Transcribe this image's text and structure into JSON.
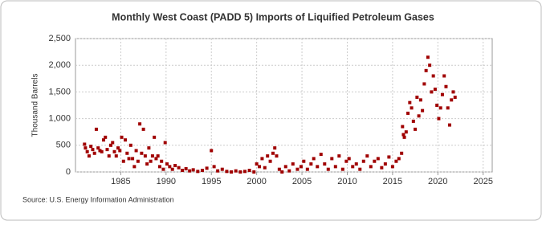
{
  "chart_data": {
    "type": "scatter",
    "title": "Monthly West Coast (PADD 5) Imports of Liquified Petroleum Gases",
    "y_label": "Thousand Barrels",
    "source": "Source: U.S. Energy Information Administration",
    "x": [
      1981.0,
      1981.1,
      1981.3,
      1981.5,
      1981.7,
      1981.9,
      1982.1,
      1982.3,
      1982.5,
      1982.7,
      1982.9,
      1983.1,
      1983.3,
      1983.5,
      1983.7,
      1983.9,
      1984.1,
      1984.3,
      1984.5,
      1984.7,
      1984.9,
      1985.1,
      1985.3,
      1985.5,
      1985.7,
      1985.9,
      1986.1,
      1986.3,
      1986.5,
      1986.7,
      1986.9,
      1987.1,
      1987.3,
      1987.5,
      1987.7,
      1987.9,
      1988.1,
      1988.3,
      1988.5,
      1988.7,
      1988.9,
      1989.1,
      1989.3,
      1989.5,
      1989.7,
      1989.9,
      1990.1,
      1990.4,
      1990.7,
      1991.0,
      1991.4,
      1991.8,
      1992.2,
      1992.6,
      1993.0,
      1993.5,
      1994.0,
      1994.5,
      1995.0,
      1995.3,
      1995.7,
      1996.2,
      1996.7,
      1997.2,
      1997.7,
      1998.2,
      1998.7,
      1999.2,
      1999.7,
      2000.0,
      2000.3,
      2000.6,
      2000.9,
      2001.2,
      2001.5,
      2001.8,
      2002.0,
      2002.2,
      2002.5,
      2002.8,
      2003.2,
      2003.6,
      2004.0,
      2004.5,
      2004.9,
      2005.2,
      2005.6,
      2006.0,
      2006.3,
      2006.7,
      2007.1,
      2007.5,
      2007.9,
      2008.3,
      2008.7,
      2009.1,
      2009.5,
      2009.9,
      2010.2,
      2010.6,
      2011.0,
      2011.4,
      2011.8,
      2012.2,
      2012.6,
      2013.0,
      2013.4,
      2013.8,
      2014.2,
      2014.6,
      2015.0,
      2015.4,
      2015.7,
      2016.0,
      2016.1,
      2016.2,
      2016.3,
      2016.5,
      2016.7,
      2016.9,
      2017.1,
      2017.3,
      2017.5,
      2017.7,
      2017.9,
      2018.1,
      2018.3,
      2018.5,
      2018.7,
      2018.9,
      2019.1,
      2019.3,
      2019.5,
      2019.7,
      2019.9,
      2020.1,
      2020.3,
      2020.5,
      2020.7,
      2020.9,
      2021.1,
      2021.3,
      2021.5,
      2021.7,
      2021.9
    ],
    "series": [
      {
        "name": "Imports",
        "color": "#a00000",
        "values": [
          520,
          450,
          380,
          300,
          480,
          420,
          350,
          800,
          450,
          400,
          380,
          600,
          650,
          420,
          300,
          500,
          550,
          380,
          300,
          450,
          400,
          650,
          200,
          600,
          350,
          250,
          500,
          250,
          100,
          400,
          200,
          900,
          350,
          800,
          300,
          150,
          450,
          200,
          300,
          650,
          250,
          300,
          100,
          200,
          50,
          550,
          150,
          100,
          50,
          120,
          80,
          30,
          60,
          20,
          40,
          10,
          30,
          70,
          400,
          100,
          20,
          50,
          10,
          0,
          20,
          0,
          10,
          30,
          0,
          150,
          100,
          250,
          80,
          300,
          200,
          350,
          450,
          300,
          50,
          0,
          100,
          20,
          150,
          50,
          100,
          200,
          50,
          150,
          250,
          100,
          330,
          150,
          50,
          250,
          100,
          300,
          50,
          200,
          250,
          100,
          150,
          50,
          200,
          300,
          100,
          200,
          250,
          80,
          150,
          280,
          100,
          200,
          250,
          350,
          850,
          700,
          650,
          750,
          1100,
          1300,
          1200,
          950,
          800,
          1400,
          1050,
          1350,
          1150,
          1650,
          1900,
          2150,
          2000,
          1500,
          1800,
          1550,
          1250,
          1000,
          1200,
          1450,
          1800,
          1600,
          1200,
          880,
          1350,
          1500,
          1400
        ]
      }
    ],
    "xlim": [
      1980,
      2026
    ],
    "xticks": [
      1985,
      1990,
      1995,
      2000,
      2005,
      2010,
      2015,
      2020,
      2025
    ],
    "ylim": [
      0,
      2500
    ],
    "yticks": [
      0,
      500,
      {
        "value": 1000,
        "label": "1,000"
      },
      {
        "value": 1500,
        "label": "1,500"
      },
      {
        "value": 2000,
        "label": "2,000"
      },
      {
        "value": 2500,
        "label": "2,500"
      }
    ],
    "grid": true
  }
}
